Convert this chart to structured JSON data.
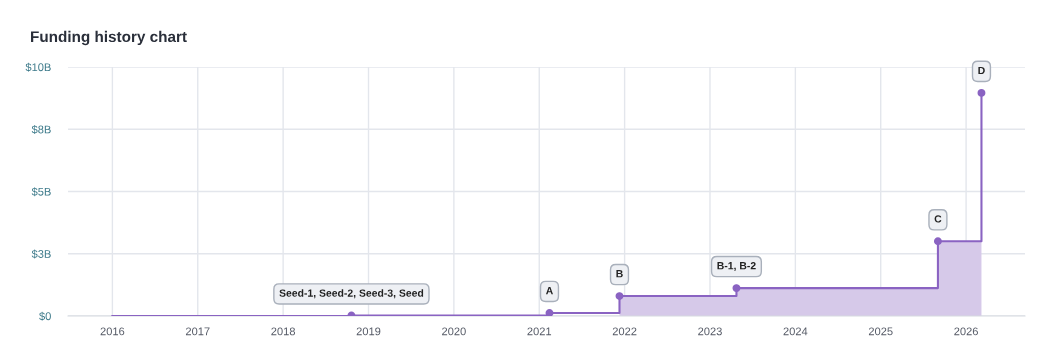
{
  "chart_data": {
    "type": "step",
    "title": "Funding history chart",
    "xlim": [
      2015.48,
      2026.69
    ],
    "xticks": [
      2016,
      2017,
      2018,
      2019,
      2020,
      2021,
      2022,
      2023,
      2024,
      2025,
      2026
    ],
    "ylim": [
      0,
      10
    ],
    "yticks": [
      {
        "value": 0,
        "label": "$0"
      },
      {
        "value": 2.5,
        "label": "$3B"
      },
      {
        "value": 5,
        "label": "$5B"
      },
      {
        "value": 7.5,
        "label": "$8B"
      },
      {
        "value": 10,
        "label": "$10B"
      }
    ],
    "grid": true,
    "line_style": "solid",
    "series": [
      {
        "type": "area",
        "color": "#d6c9e9",
        "x": [
          2021.94,
          2023.31,
          2025.67,
          2026.18
        ],
        "values": [
          0.8,
          1.12,
          3.0,
          8.96
        ]
      },
      {
        "color": "#8a63c2",
        "marker": "none",
        "x": [
          2016,
          2018.8,
          2021.12,
          2021.94,
          2023.31,
          2025.67,
          2026.18
        ],
        "values": [
          0,
          0.02,
          0.12,
          0.8,
          1.12,
          3.0,
          8.96
        ]
      },
      {
        "type": "scatter",
        "color": "#8a63c2",
        "marker": "circle",
        "x": [
          2018.8,
          2021.12,
          2021.94,
          2023.31,
          2025.67,
          2026.18
        ],
        "values": [
          0.02,
          0.12,
          0.8,
          1.12,
          3.0,
          8.96
        ]
      }
    ],
    "annotations": [
      {
        "text": "Seed-1, Seed-2, Seed-3, Seed",
        "x": 2018.8,
        "y": 0.02
      },
      {
        "text": "A",
        "x": 2021.12,
        "y": 0.12
      },
      {
        "text": "B",
        "x": 2021.94,
        "y": 0.8
      },
      {
        "text": "B-1, B-2",
        "x": 2023.31,
        "y": 1.12
      },
      {
        "text": "C",
        "x": 2025.67,
        "y": 3.0
      },
      {
        "text": "D",
        "x": 2026.18,
        "y": 8.96
      }
    ]
  }
}
